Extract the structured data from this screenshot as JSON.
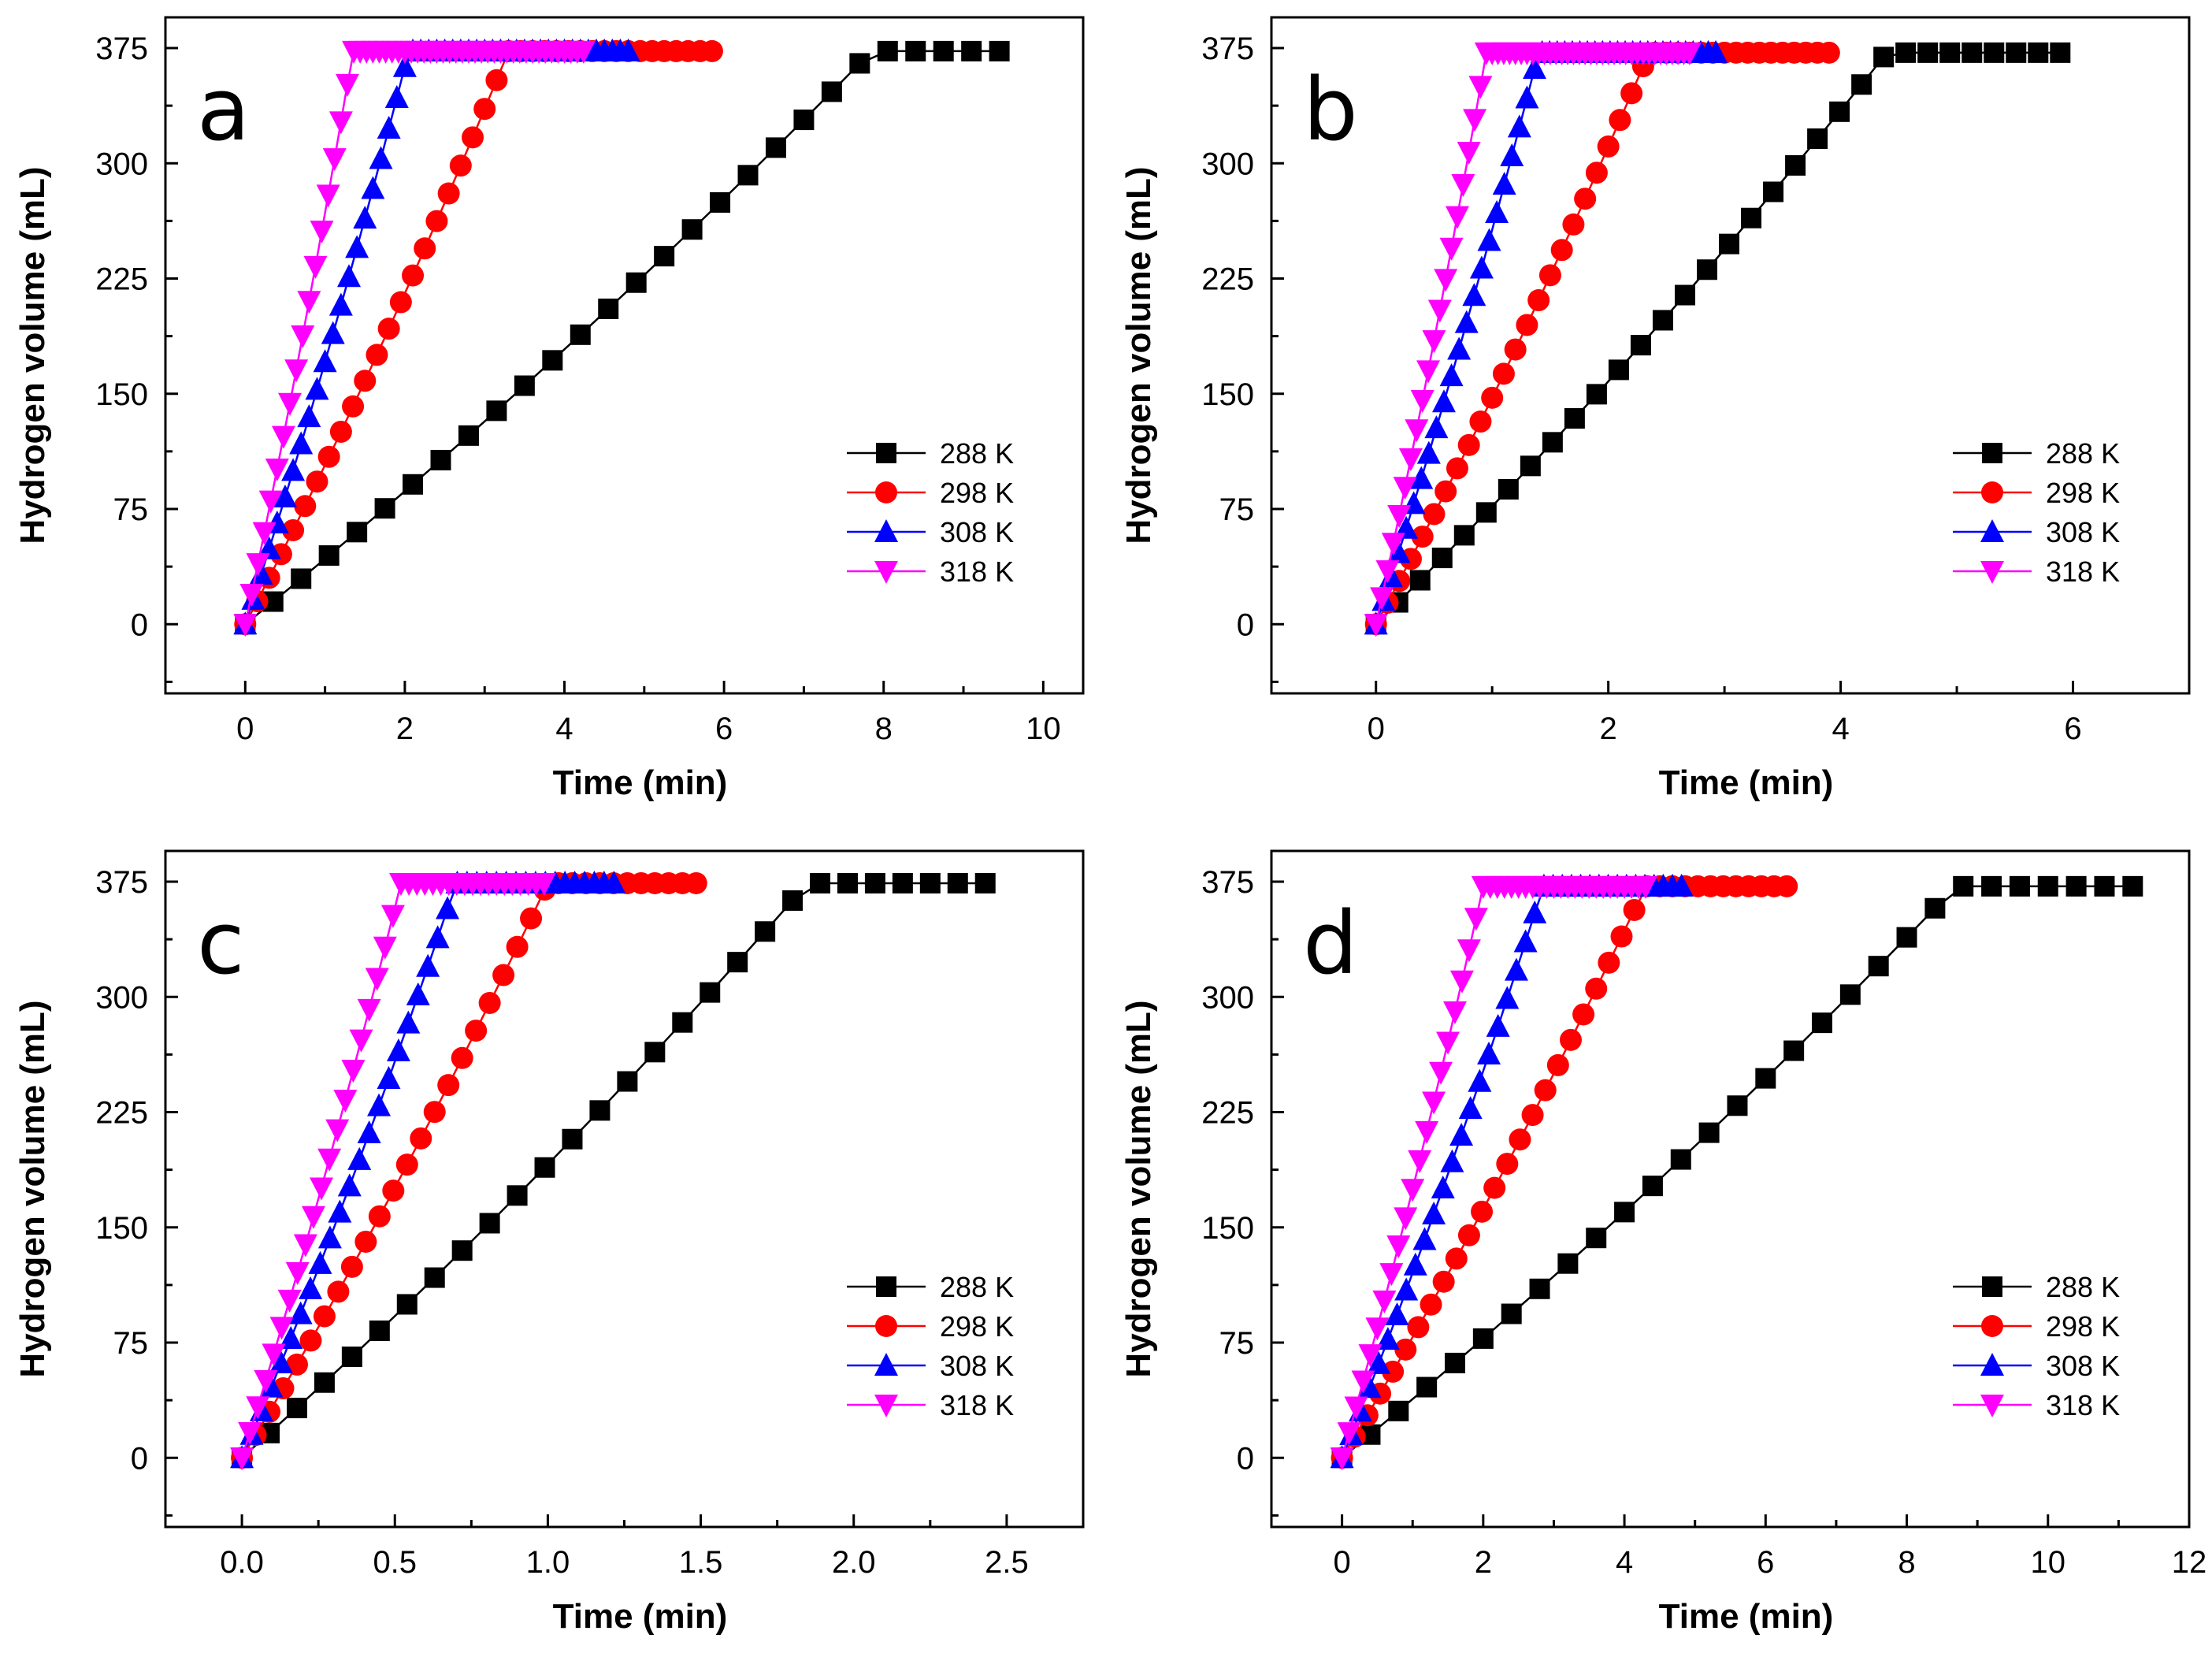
{
  "colors": {
    "288 K": "#000000",
    "298 K": "#ff0000",
    "308 K": "#0000ff",
    "318 K": "#ff00ff"
  },
  "chart_data": [
    {
      "type": "line",
      "panel": "a",
      "xlabel": "Time (min)",
      "ylabel": "Hydrogen volume (mL)",
      "xlim": [
        -1,
        10.5
      ],
      "ylim": [
        -45,
        395
      ],
      "xticks": [
        0,
        2,
        4,
        6,
        8,
        10
      ],
      "xticklabels": [
        "0",
        "2",
        "4",
        "6",
        "8",
        "10"
      ],
      "yticks": [
        0,
        75,
        150,
        225,
        300,
        375
      ],
      "yticklabels": [
        "0",
        "75",
        "150",
        "225",
        "300",
        "375"
      ],
      "legend": "bottom-right",
      "series": [
        {
          "name": "288 K",
          "marker": "square",
          "ramp_end": 7.85,
          "t_end": 9.6,
          "dt": 0.35,
          "plateau": 373
        },
        {
          "name": "298 K",
          "marker": "circle",
          "ramp_end": 3.3,
          "t_end": 5.9,
          "dt": 0.15,
          "plateau": 373
        },
        {
          "name": "308 K",
          "marker": "triangle-up",
          "ramp_end": 2.05,
          "t_end": 4.8,
          "dt": 0.1,
          "plateau": 373
        },
        {
          "name": "318 K",
          "marker": "triangle-down",
          "ramp_end": 1.35,
          "t_end": 4.2,
          "dt": 0.08,
          "plateau": 373
        }
      ]
    },
    {
      "type": "line",
      "panel": "b",
      "xlabel": "Time (min)",
      "ylabel": "Hydrogen volume (mL)",
      "xlim": [
        -0.9,
        7
      ],
      "ylim": [
        -45,
        395
      ],
      "xticks": [
        0,
        2,
        4,
        6
      ],
      "xticklabels": [
        "0",
        "2",
        "4",
        "6"
      ],
      "yticks": [
        0,
        75,
        150,
        225,
        300,
        375
      ],
      "yticklabels": [
        "0",
        "75",
        "150",
        "225",
        "300",
        "375"
      ],
      "legend": "bottom-right",
      "series": [
        {
          "name": "288 K",
          "marker": "square",
          "ramp_end": 4.4,
          "t_end": 5.85,
          "dt": 0.19,
          "plateau": 372
        },
        {
          "name": "298 K",
          "marker": "circle",
          "ramp_end": 2.35,
          "t_end": 3.9,
          "dt": 0.1,
          "plateau": 372
        },
        {
          "name": "308 K",
          "marker": "triangle-up",
          "ramp_end": 1.4,
          "t_end": 2.95,
          "dt": 0.065,
          "plateau": 372
        },
        {
          "name": "318 K",
          "marker": "triangle-down",
          "ramp_end": 0.95,
          "t_end": 2.7,
          "dt": 0.05,
          "plateau": 372
        }
      ]
    },
    {
      "type": "line",
      "panel": "c",
      "xlabel": "Time (min)",
      "ylabel": "Hydrogen volume (mL)",
      "xlim": [
        -0.25,
        2.75
      ],
      "ylim": [
        -45,
        395
      ],
      "xticks": [
        0,
        0.5,
        1,
        1.5,
        2,
        2.5
      ],
      "xticklabels": [
        "0.0",
        "0.5",
        "1.0",
        "1.5",
        "2.0",
        "2.5"
      ],
      "yticks": [
        0,
        75,
        150,
        225,
        300,
        375
      ],
      "yticklabels": [
        "0",
        "75",
        "150",
        "225",
        "300",
        "375"
      ],
      "legend": "bottom-right",
      "series": [
        {
          "name": "288 K",
          "marker": "square",
          "ramp_end": 1.85,
          "t_end": 2.42,
          "dt": 0.09,
          "plateau": 374
        },
        {
          "name": "298 K",
          "marker": "circle",
          "ramp_end": 1.0,
          "t_end": 1.48,
          "dt": 0.045,
          "plateau": 374
        },
        {
          "name": "308 K",
          "marker": "triangle-up",
          "ramp_end": 0.7,
          "t_end": 1.22,
          "dt": 0.032,
          "plateau": 374
        },
        {
          "name": "318 K",
          "marker": "triangle-down",
          "ramp_end": 0.52,
          "t_end": 1.0,
          "dt": 0.026,
          "plateau": 374
        }
      ]
    },
    {
      "type": "line",
      "panel": "d",
      "xlabel": "Time (min)",
      "ylabel": "Hydrogen volume (mL)",
      "xlim": [
        -1,
        12
      ],
      "ylim": [
        -45,
        395
      ],
      "xticks": [
        0,
        2,
        4,
        6,
        8,
        10,
        12
      ],
      "xticklabels": [
        "0",
        "2",
        "4",
        "6",
        "8",
        "10",
        "12"
      ],
      "yticks": [
        0,
        75,
        150,
        225,
        300,
        375
      ],
      "yticklabels": [
        "0",
        "75",
        "150",
        "225",
        "300",
        "375"
      ],
      "legend": "bottom-right",
      "series": [
        {
          "name": "288 K",
          "marker": "square",
          "ramp_end": 8.7,
          "t_end": 11.0,
          "dt": 0.4,
          "plateau": 372
        },
        {
          "name": "298 K",
          "marker": "circle",
          "ramp_end": 4.3,
          "t_end": 6.3,
          "dt": 0.18,
          "plateau": 372
        },
        {
          "name": "308 K",
          "marker": "triangle-up",
          "ramp_end": 2.85,
          "t_end": 4.85,
          "dt": 0.13,
          "plateau": 372
        },
        {
          "name": "318 K",
          "marker": "triangle-down",
          "ramp_end": 2.0,
          "t_end": 4.3,
          "dt": 0.1,
          "plateau": 372
        }
      ]
    }
  ]
}
